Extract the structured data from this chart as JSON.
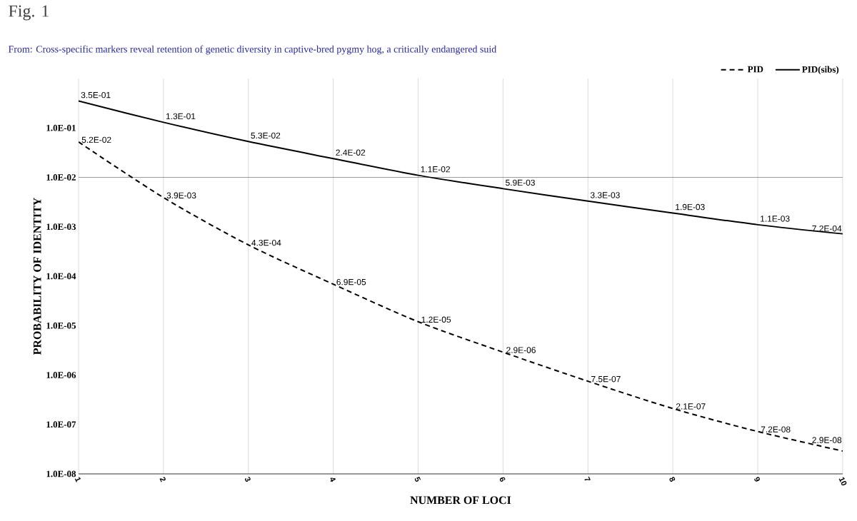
{
  "chart_data": {
    "type": "line",
    "title": "Fig. 1",
    "subtitle": "From: Cross-specific markers reveal retention of genetic diversity in captive-bred pygmy hog, a critically endangered suid",
    "xlabel": "NUMBER OF LOCI",
    "ylabel": "PROBABILITY OF IDENTITY",
    "x": [
      1,
      2,
      3,
      4,
      5,
      6,
      7,
      8,
      9,
      10
    ],
    "series": [
      {
        "name": "PID",
        "color": "#000000",
        "line_style": "dashed",
        "values": [
          0.052,
          0.0039,
          0.00043,
          6.9e-05,
          1.2e-05,
          2.9e-06,
          7.5e-07,
          2.1e-07,
          7.2e-08,
          2.9e-08
        ],
        "value_labels": [
          "5.2E-02",
          "3.9E-03",
          "4.3E-04",
          "6.9E-05",
          "1.2E-05",
          "2.9E-06",
          "7.5E-07",
          "2.1E-07",
          "7.2E-08",
          "2.9E-08"
        ]
      },
      {
        "name": "PID(sibs)",
        "color": "#000000",
        "line_style": "solid",
        "values": [
          0.35,
          0.13,
          0.053,
          0.024,
          0.011,
          0.0059,
          0.0033,
          0.0019,
          0.0011,
          0.00072
        ],
        "value_labels": [
          "3.5E-01",
          "1.3E-01",
          "5.3E-02",
          "2.4E-02",
          "1.1E-02",
          "5.9E-03",
          "3.3E-03",
          "1.9E-03",
          "1.1E-03",
          "7.2E-04"
        ]
      }
    ],
    "log": "y",
    "xlim": [
      1,
      10
    ],
    "ylim": [
      1e-08,
      1
    ],
    "xticks": [
      1,
      2,
      3,
      4,
      5,
      6,
      7,
      8,
      9,
      10
    ],
    "yticks": [
      {
        "value": 1e-08,
        "label": "1.0E-08"
      },
      {
        "value": 1e-07,
        "label": "1.0E-07"
      },
      {
        "value": 1e-06,
        "label": "1.0E-06"
      },
      {
        "value": 1e-05,
        "label": "1.0E-05"
      },
      {
        "value": 0.0001,
        "label": "1.0E-04"
      },
      {
        "value": 0.001,
        "label": "1.0E-03"
      },
      {
        "value": 0.01,
        "label": "1.0E-02"
      },
      {
        "value": 0.1,
        "label": "1.0E-01"
      }
    ],
    "ref_lines": [
      {
        "axis": "y",
        "value": 0.01,
        "color": "#000000"
      }
    ],
    "grid": "x",
    "legend": "top right",
    "marker": "none"
  }
}
